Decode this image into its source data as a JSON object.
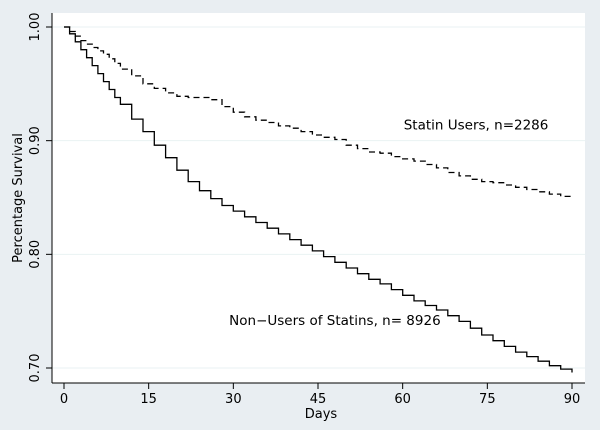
{
  "chart_data": {
    "type": "line",
    "xlabel": "Days",
    "ylabel": "Percentage Survival",
    "xlim": [
      0,
      90
    ],
    "ylim": [
      0.7,
      1.0
    ],
    "x_ticks": [
      0,
      15,
      30,
      45,
      60,
      75,
      90
    ],
    "x_tick_labels": [
      "0",
      "15",
      "30",
      "45",
      "60",
      "75",
      "90"
    ],
    "y_ticks": [
      0.7,
      0.8,
      0.9,
      1.0
    ],
    "y_tick_labels": [
      "0.70",
      "0.80",
      "0.90",
      "1.00"
    ],
    "grid": "horizontal",
    "series": [
      {
        "label": "Statin Users, n=2286",
        "style": "dashed",
        "color": "#000000",
        "x": [
          0,
          1,
          2,
          3,
          4,
          5,
          6,
          7,
          8,
          9,
          10,
          12,
          14,
          16,
          18,
          20,
          22,
          24,
          26,
          28,
          30,
          32,
          34,
          36,
          38,
          40,
          42,
          44,
          46,
          48,
          50,
          52,
          54,
          56,
          58,
          60,
          62,
          64,
          66,
          68,
          70,
          72,
          74,
          76,
          78,
          80,
          82,
          84,
          86,
          88,
          90
        ],
        "y": [
          1.0,
          0.996,
          0.992,
          0.988,
          0.985,
          0.982,
          0.979,
          0.976,
          0.972,
          0.968,
          0.963,
          0.957,
          0.95,
          0.946,
          0.942,
          0.939,
          0.938,
          0.938,
          0.936,
          0.93,
          0.925,
          0.921,
          0.918,
          0.916,
          0.913,
          0.911,
          0.908,
          0.905,
          0.903,
          0.901,
          0.896,
          0.893,
          0.89,
          0.889,
          0.886,
          0.884,
          0.882,
          0.879,
          0.876,
          0.872,
          0.869,
          0.866,
          0.864,
          0.863,
          0.861,
          0.859,
          0.857,
          0.855,
          0.853,
          0.851,
          0.849
        ]
      },
      {
        "label": "Non−Users of Statins, n= 8926",
        "style": "solid",
        "color": "#000000",
        "x": [
          0,
          1,
          2,
          3,
          4,
          5,
          6,
          7,
          8,
          9,
          10,
          12,
          14,
          16,
          18,
          20,
          22,
          24,
          26,
          28,
          30,
          32,
          34,
          36,
          38,
          40,
          42,
          44,
          46,
          48,
          50,
          52,
          54,
          56,
          58,
          60,
          62,
          64,
          66,
          68,
          70,
          72,
          74,
          76,
          78,
          80,
          82,
          84,
          86,
          88,
          90
        ],
        "y": [
          1.0,
          0.994,
          0.987,
          0.98,
          0.973,
          0.966,
          0.959,
          0.952,
          0.945,
          0.938,
          0.932,
          0.919,
          0.908,
          0.896,
          0.885,
          0.874,
          0.864,
          0.856,
          0.849,
          0.843,
          0.838,
          0.833,
          0.828,
          0.823,
          0.818,
          0.813,
          0.808,
          0.803,
          0.798,
          0.793,
          0.788,
          0.783,
          0.778,
          0.774,
          0.769,
          0.764,
          0.759,
          0.755,
          0.751,
          0.746,
          0.741,
          0.735,
          0.729,
          0.724,
          0.719,
          0.714,
          0.71,
          0.706,
          0.702,
          0.699,
          0.696
        ]
      }
    ],
    "annotations": [
      {
        "text": "Statin Users, n=2286",
        "x": 73,
        "y": 0.91
      },
      {
        "text": "Non−Users of Statins, n= 8926",
        "x": 48,
        "y": 0.738
      }
    ]
  }
}
